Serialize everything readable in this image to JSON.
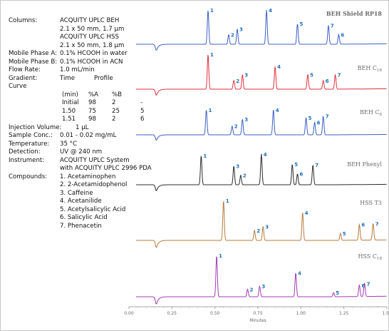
{
  "conditions": {
    "columns_label": "Columns:",
    "columns_lines": [
      "ACQUITY UPLC BEH",
      "2.1 x 50 mm, 1.7 µm",
      "ACQUITY UPLC HSS",
      "2.1 x 50 mm, 1.8 µm"
    ],
    "mobile_a_label": "Mobile Phase A:",
    "mobile_a": "0.1% HCOOH in water",
    "mobile_b_label": "Mobile Phase B:",
    "mobile_b": "0.1% HCOOH in ACN",
    "flow_label": "Flow Rate:",
    "flow": "1.0 mL/min",
    "gradient_label": "Gradient:",
    "gradient_header": [
      "Time",
      "Profile"
    ],
    "curve_label": "Curve",
    "gradient_cols": [
      "(min)",
      "%A",
      "%B"
    ],
    "gradient_rows": [
      [
        "Initial",
        "98",
        "2",
        "-"
      ],
      [
        "1.50",
        "75",
        "25",
        "5"
      ],
      [
        "1.51",
        "98",
        "2",
        "6"
      ]
    ],
    "injection_label": "Injection Volume:",
    "injection": "1 µL",
    "sample_label": "Sample Conc.:",
    "sample": "0.01 - 0.02 mg/mL",
    "temp_label": "Temperature:",
    "temp": "35 °C",
    "detection_label": "Detection:",
    "detection": "UV @ 240 nm",
    "instrument_label": "Instrument:",
    "instrument_lines": [
      "ACQUITY UPLC System",
      "with ACQUITY UPLC 2996 PDA"
    ],
    "compounds_label": "Compounds:",
    "compounds": [
      "1. Acetaminophen",
      "2. 2-Acetamidophenol",
      "3. Caffeine",
      "4. Acetanilide",
      "5. Acetylsalicylic Acid",
      "6. Salicylic Acid",
      "7. Phenacetin"
    ]
  },
  "chart_data": {
    "type": "line",
    "xlabel": "Minutes",
    "ylabel": "",
    "xlim": [
      0.0,
      1.5
    ],
    "xticks": [
      "0.00",
      "0.25",
      "0.50",
      "0.75",
      "1.00",
      "1.25",
      "1.50"
    ],
    "xtick_values": [
      0.0,
      0.25,
      0.5,
      0.75,
      1.0,
      1.25,
      1.5
    ],
    "grid": false,
    "series": [
      {
        "name": "BEH Shield RP18",
        "label_main": "BEH Shield RP18",
        "label_sub": "",
        "label_color": "#b5a21c",
        "color": "#3d5fc4",
        "dip_x": 0.16,
        "peaks": [
          {
            "label": "1",
            "x": 0.46,
            "h": 1.0
          },
          {
            "label": "2",
            "x": 0.58,
            "h": 0.28
          },
          {
            "label": "3",
            "x": 0.63,
            "h": 0.45
          },
          {
            "label": "4",
            "x": 0.8,
            "h": 1.0
          },
          {
            "label": "5",
            "x": 0.98,
            "h": 0.6
          },
          {
            "label": "7",
            "x": 1.16,
            "h": 0.55
          },
          {
            "label": "6",
            "x": 1.22,
            "h": 0.28
          }
        ]
      },
      {
        "name": "BEH C18",
        "label_main": "BEH C",
        "label_sub": "18",
        "label_color": "#6a6a6a",
        "color": "#e0303c",
        "dip_x": 0.16,
        "peaks": [
          {
            "label": "1",
            "x": 0.46,
            "h": 1.0
          },
          {
            "label": "2",
            "x": 0.61,
            "h": 0.25
          },
          {
            "label": "3",
            "x": 0.66,
            "h": 0.42
          },
          {
            "label": "4",
            "x": 0.85,
            "h": 0.65
          },
          {
            "label": "5",
            "x": 1.04,
            "h": 0.42
          },
          {
            "label": "6",
            "x": 1.13,
            "h": 0.25
          },
          {
            "label": "7",
            "x": 1.2,
            "h": 0.42
          }
        ]
      },
      {
        "name": "BEH C8",
        "label_main": "BEH C",
        "label_sub": "8",
        "label_color": "#6a6a6a",
        "color": "#3d5fc4",
        "dip_x": 0.16,
        "peaks": [
          {
            "label": "1",
            "x": 0.45,
            "h": 0.8
          },
          {
            "label": "2",
            "x": 0.6,
            "h": 0.28
          },
          {
            "label": "3",
            "x": 0.66,
            "h": 0.5
          },
          {
            "label": "4",
            "x": 0.84,
            "h": 0.8
          },
          {
            "label": "5",
            "x": 1.03,
            "h": 0.55
          },
          {
            "label": "6",
            "x": 1.08,
            "h": 0.4
          },
          {
            "label": "7",
            "x": 1.13,
            "h": 0.6
          }
        ]
      },
      {
        "name": "BEH Phenyl",
        "label_main": "BEH Phenyl",
        "label_sub": "",
        "label_color": "#6a6a6a",
        "color": "#2b2b2b",
        "dip_x": 0.16,
        "peaks": [
          {
            "label": "1",
            "x": 0.42,
            "h": 0.85
          },
          {
            "label": "3",
            "x": 0.61,
            "h": 0.55
          },
          {
            "label": "2",
            "x": 0.65,
            "h": 0.28
          },
          {
            "label": "4",
            "x": 0.77,
            "h": 0.9
          },
          {
            "label": "5",
            "x": 0.95,
            "h": 0.6
          },
          {
            "label": "6",
            "x": 0.98,
            "h": 0.32
          },
          {
            "label": "7",
            "x": 1.07,
            "h": 0.58
          }
        ]
      },
      {
        "name": "HSS T3",
        "label_main": "HSS T3",
        "label_sub": "",
        "label_color": "#6a6a6a",
        "color": "#b87a3c",
        "dip_x": 0.16,
        "peaks": [
          {
            "label": "1",
            "x": 0.55,
            "h": 1.0
          },
          {
            "label": "2",
            "x": 0.73,
            "h": 0.25
          },
          {
            "label": "3",
            "x": 0.78,
            "h": 0.35
          },
          {
            "label": "4",
            "x": 1.01,
            "h": 0.7
          },
          {
            "label": "5",
            "x": 1.23,
            "h": 0.18
          },
          {
            "label": "6",
            "x": 1.34,
            "h": 0.4
          },
          {
            "label": "7",
            "x": 1.42,
            "h": 0.42
          }
        ]
      },
      {
        "name": "HSS C18",
        "label_main": "HSS C",
        "label_sub": "18",
        "label_color": "#6a6a6a",
        "color": "#a43bb3",
        "dip_x": 0.16,
        "peaks": [
          {
            "label": "1",
            "x": 0.51,
            "h": 1.0
          },
          {
            "label": "2",
            "x": 0.69,
            "h": 0.18
          },
          {
            "label": "3",
            "x": 0.76,
            "h": 0.26
          },
          {
            "label": "4",
            "x": 0.97,
            "h": 0.58
          },
          {
            "label": "5",
            "x": 1.19,
            "h": 0.1
          },
          {
            "label": "6",
            "x": 1.34,
            "h": 0.28
          },
          {
            "label": "7",
            "x": 1.37,
            "h": 0.32
          }
        ]
      }
    ]
  }
}
